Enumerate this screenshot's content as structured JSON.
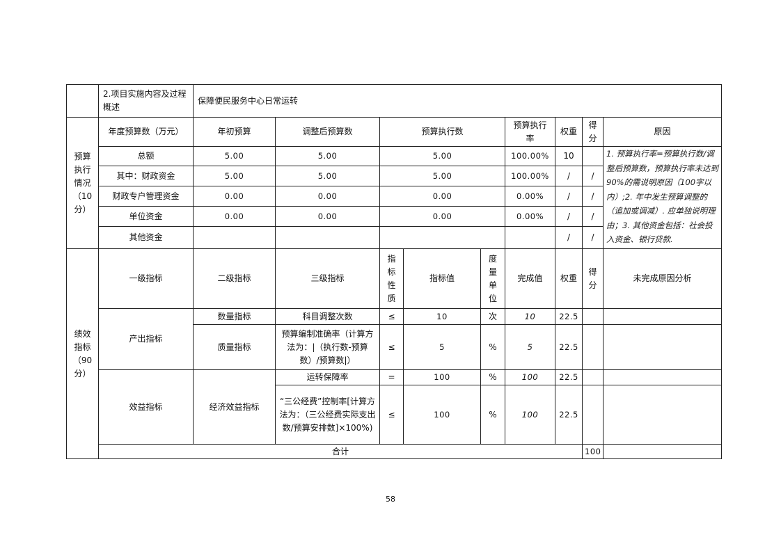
{
  "overview": {
    "label": "2.项目实施内容及过程概述",
    "content": "保障便民服务中心日常运转"
  },
  "budget": {
    "section_label": "预算\n执行\n情况\n（10\n分）",
    "headers": [
      "年度预算数（万元）",
      "年初预算",
      "调整后预算数",
      "预算执行数",
      "预算执行\n率",
      "权重",
      "得\n分",
      "原因"
    ],
    "rows": [
      {
        "name": "总额",
        "initial": "5.00",
        "adjusted": "5.00",
        "executed": "5.00",
        "rate": "100.00%",
        "weight": "10",
        "score": ""
      },
      {
        "name": "其中：财政资金",
        "initial": "5.00",
        "adjusted": "5.00",
        "executed": "5.00",
        "rate": "100.00%",
        "weight": "/",
        "score": "/"
      },
      {
        "name": "财政专户管理资金",
        "initial": "0.00",
        "adjusted": "0.00",
        "executed": "0.00",
        "rate": "0.00%",
        "weight": "/",
        "score": "/"
      },
      {
        "name": "单位资金",
        "initial": "0.00",
        "adjusted": "0.00",
        "executed": "0.00",
        "rate": "0.00%",
        "weight": "/",
        "score": "/"
      },
      {
        "name": "其他资金",
        "initial": "",
        "adjusted": "",
        "executed": "",
        "rate": "",
        "weight": "/",
        "score": "/"
      }
    ],
    "note": "1. 预算执行率=预算执行数/调整后预算数，预算执行率未达到 90%的需说明原因（100字以内）;2. 年中发生预算调整的（追加或调减）. 应单独说明理由；3. 其他资金包括：社会投入资金、银行贷款."
  },
  "performance": {
    "section_label": "绩效\n指标\n（90\n分）",
    "headers": [
      "一级指标",
      "二级指标",
      "三级指标",
      "指\n标\n性\n质",
      "指标值",
      "度\n量\n单\n位",
      "完成值",
      "权重",
      "得\n分",
      "未完成原因分析"
    ],
    "groups": [
      {
        "level1": "产出指标",
        "level2": [
          {
            "name": "数量指标",
            "items": [
              {
                "name": "科目调整次数",
                "nature": "≤",
                "target": "10",
                "unit": "次",
                "actual": "10",
                "weight": "22.5"
              }
            ]
          },
          {
            "name": "质量指标",
            "items": [
              {
                "name": "预算编制准确率（计算方法为：|（执行数-预算数）/预算数|）",
                "nature": "≤",
                "target": "5",
                "unit": "%",
                "actual": "5",
                "weight": "22.5"
              }
            ]
          }
        ]
      },
      {
        "level1": "效益指标",
        "level2": [
          {
            "name": "经济效益指标",
            "items": [
              {
                "name": "运转保障率",
                "nature": "=",
                "target": "100",
                "unit": "%",
                "actual": "100",
                "weight": "22.5"
              },
              {
                "name": "“三公经费”控制率[计算方法为：（三公经费实际支出数/预算安排数]×100%)",
                "nature": "≤",
                "target": "100",
                "unit": "%",
                "actual": "100",
                "weight": "22.5"
              }
            ]
          }
        ]
      }
    ],
    "total_label": "合计",
    "total_weight": "100"
  },
  "page_number": "58"
}
